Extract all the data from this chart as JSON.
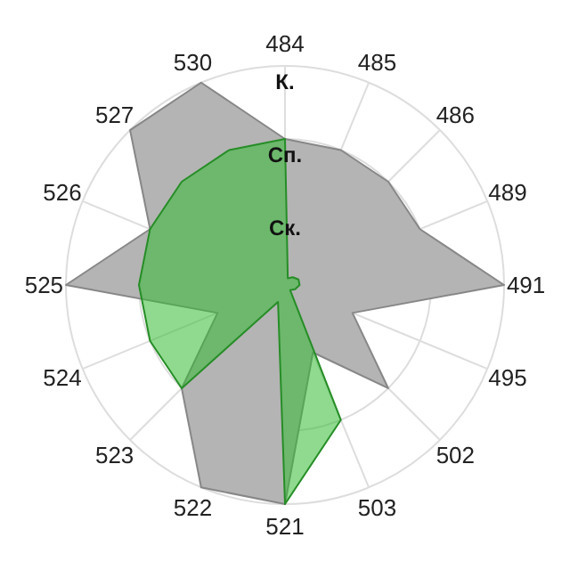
{
  "chart_data": {
    "type": "radar",
    "categories": [
      "484",
      "485",
      "486",
      "489",
      "491",
      "495",
      "502",
      "503",
      "521",
      "522",
      "523",
      "524",
      "525",
      "526",
      "527",
      "530"
    ],
    "series": [
      {
        "color": "#b4b4b4",
        "values": [
          2,
          2,
          2,
          2,
          3,
          1,
          2,
          1,
          3,
          3,
          2,
          1,
          3,
          2,
          3,
          3
        ]
      },
      {
        "color": "#33bb33",
        "values": [
          2,
          0.1,
          0.15,
          0.2,
          0.2,
          0.15,
          0.1,
          2,
          3,
          0.25,
          2,
          2,
          2,
          2,
          2,
          2
        ]
      }
    ],
    "ylim": [
      0,
      3
    ],
    "yticks": [
      {
        "value": 1,
        "label": "Ск."
      },
      {
        "value": 2,
        "label": "Сп."
      },
      {
        "value": 3,
        "label": "К."
      }
    ],
    "grid": true
  }
}
